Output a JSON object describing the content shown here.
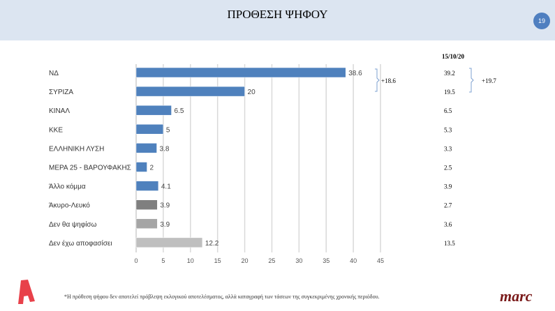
{
  "header": {
    "title": "ΠΡΟΘΕΣΗ ΨΗΦΟΥ",
    "page_number": "19"
  },
  "chart_data": {
    "type": "bar",
    "orientation": "horizontal",
    "categories": [
      "ΝΔ",
      "ΣΥΡΙΖΑ",
      "ΚΙΝΑΛ",
      "ΚΚΕ",
      "ΕΛΛΗΝΙΚΗ ΛΥΣΗ",
      "ΜΕΡΑ 25 - ΒΑΡΟΥΦΑΚΗΣ",
      "Άλλο κόμμα",
      "Άκυρο-Λευκό",
      "Δεν θα ψηφίσω",
      "Δεν έχω αποφασίσει"
    ],
    "values": [
      38.6,
      20,
      6.5,
      5,
      3.8,
      2,
      4.1,
      3.9,
      3.9,
      12.2
    ],
    "value_labels": [
      "38.6",
      "20",
      "6.5",
      "5",
      "3.8",
      "2",
      "4.1",
      "3.9",
      "3.9",
      "12.2"
    ],
    "colors": [
      "#4f81bd",
      "#4f81bd",
      "#4f81bd",
      "#4f81bd",
      "#4f81bd",
      "#4f81bd",
      "#4f81bd",
      "#7f7f7f",
      "#a5a5a5",
      "#bfbfbf"
    ],
    "xlim": [
      0,
      45
    ],
    "xticks": [
      "0",
      "5",
      "10",
      "15",
      "20",
      "25",
      "30",
      "35",
      "40",
      "45"
    ],
    "grid": true,
    "annotation_current": "+18.6",
    "previous": {
      "date": "15/10/20",
      "values": [
        "39.2",
        "19.5",
        "6.5",
        "5.3",
        "3.3",
        "2.5",
        "3.9",
        "2.7",
        "3.6",
        "13.5"
      ],
      "annotation": "+19.7"
    }
  },
  "footer": {
    "note": "*Η πρόθεση ψήφου δεν αποτελεί πρόβλεψη εκλογικού αποτελέσματος, αλλά καταγραφή των τάσεων της συγκεκριμένης χρονικής περιόδου.",
    "logo_left": "Α",
    "logo_right": "marc"
  }
}
